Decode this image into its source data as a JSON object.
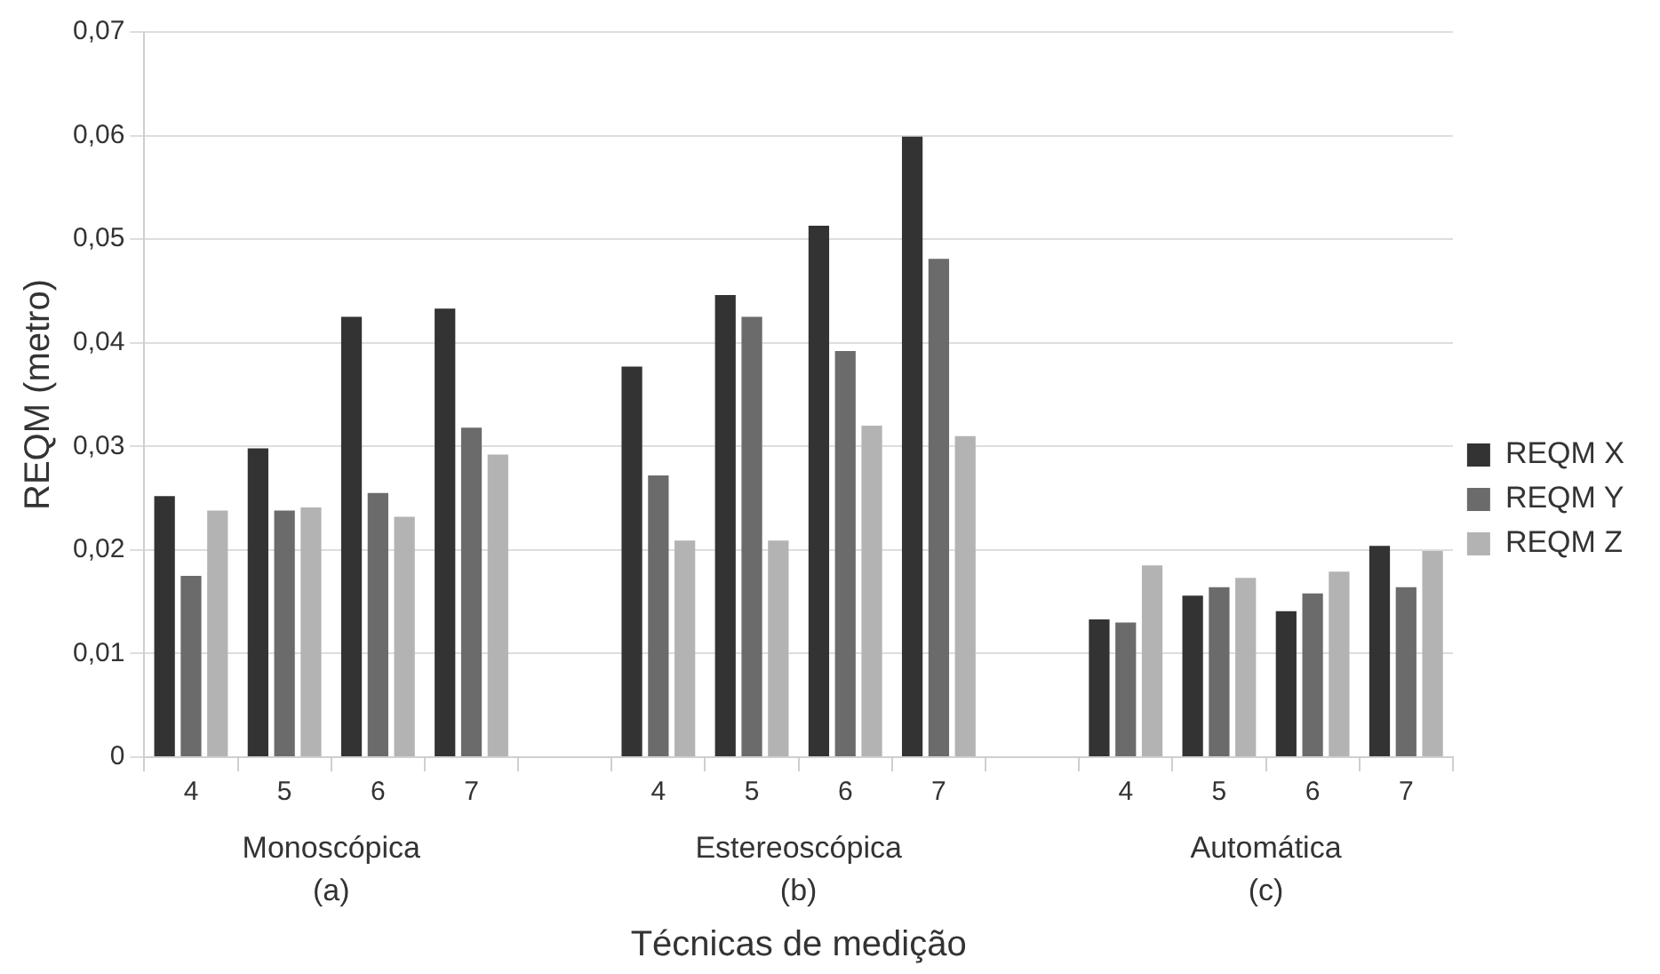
{
  "chart_data": {
    "type": "bar",
    "xlabel": "Técnicas de medição",
    "ylabel": "REQM (metro)",
    "categories": [
      "4",
      "5",
      "6",
      "7",
      null,
      "4",
      "5",
      "6",
      "7",
      null,
      "4",
      "5",
      "6",
      "7"
    ],
    "series": [
      {
        "name": "REQM X",
        "color": "#333333",
        "values": [
          0.0252,
          0.0298,
          0.0425,
          0.0433,
          null,
          0.0377,
          0.0446,
          0.0513,
          0.0599,
          null,
          0.0133,
          0.0156,
          0.0141,
          0.0204
        ]
      },
      {
        "name": "REQM Y",
        "color": "#6b6b6b",
        "values": [
          0.0175,
          0.0238,
          0.0255,
          0.0318,
          null,
          0.0272,
          0.0425,
          0.0392,
          0.0481,
          null,
          0.013,
          0.0164,
          0.0158,
          0.0164
        ]
      },
      {
        "name": "REQM Z",
        "color": "#b3b3b3",
        "values": [
          0.0238,
          0.0241,
          0.0232,
          0.0292,
          null,
          0.0209,
          0.0209,
          0.032,
          0.031,
          null,
          0.0185,
          0.0173,
          0.0179,
          0.0199
        ]
      }
    ],
    "annotations": [
      "Monoscópica\n(a)",
      "Estereoscópica\n(b)",
      "Automática\n(c)"
    ],
    "ylim": [
      0,
      0.07
    ],
    "yticks": [
      0,
      {
        "value": 0.01,
        "label": "0,01"
      },
      {
        "value": 0.02,
        "label": "0,02"
      },
      {
        "value": 0.03,
        "label": "0,03"
      },
      {
        "value": 0.04,
        "label": "0,04"
      },
      {
        "value": 0.05,
        "label": "0,05"
      },
      {
        "value": 0.06,
        "label": "0,06"
      },
      {
        "value": 0.07,
        "label": "0,07"
      }
    ],
    "grid": "y",
    "legend": "right"
  }
}
